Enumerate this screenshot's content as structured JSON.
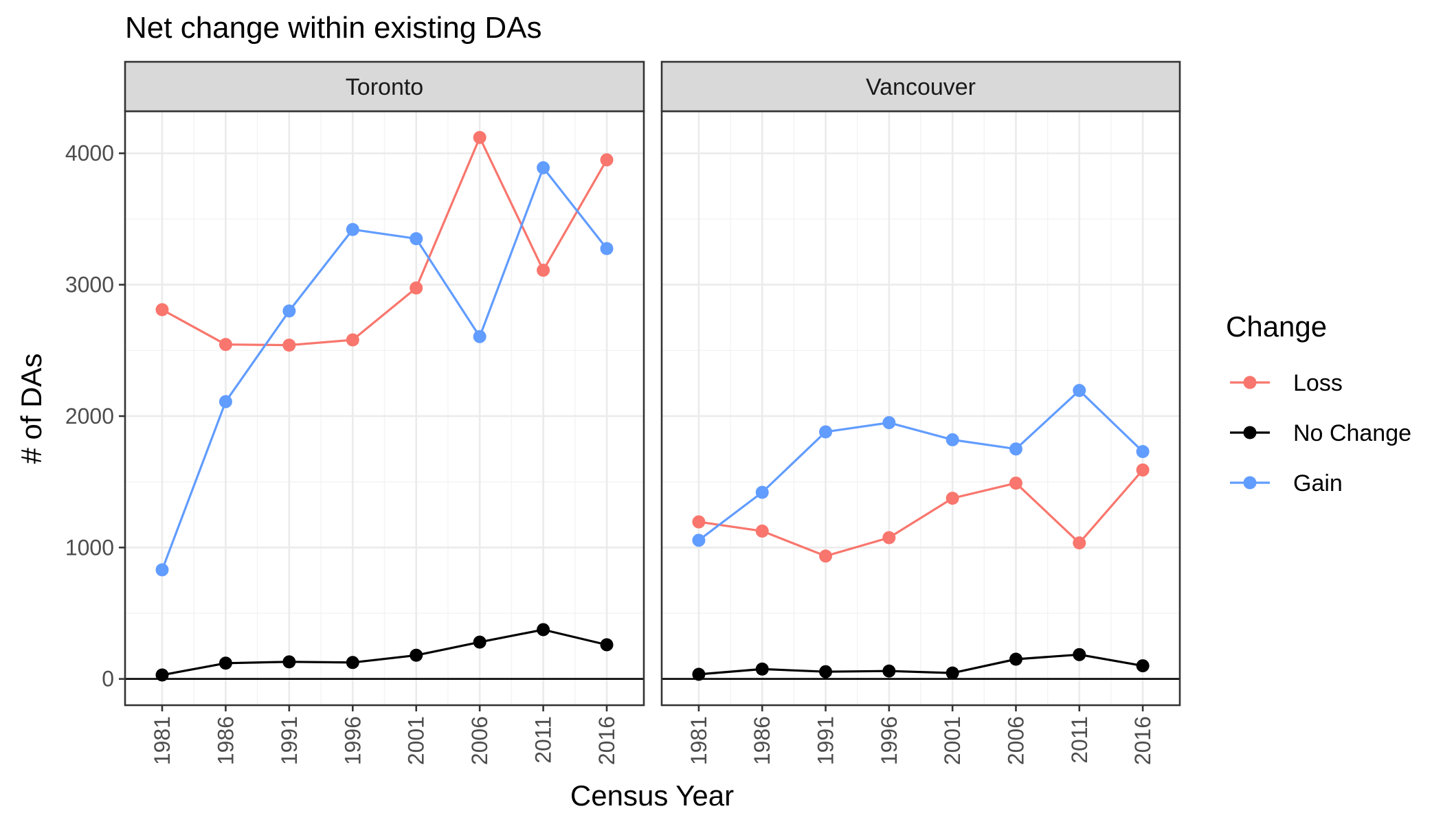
{
  "chart_data": {
    "type": "line",
    "title": "Net change within existing DAs",
    "xlabel": "Census Year",
    "ylabel": "# of DAs",
    "x": [
      "1981",
      "1986",
      "1991",
      "1996",
      "2001",
      "2006",
      "2011",
      "2016"
    ],
    "yticks": [
      0,
      1000,
      2000,
      3000,
      4000
    ],
    "ylim": [
      -200,
      4320
    ],
    "grid": true,
    "legend": {
      "title": "Change",
      "position": "right"
    },
    "series_styles": [
      {
        "name": "Loss",
        "color": "#F8766D"
      },
      {
        "name": "No Change",
        "color": "#000000"
      },
      {
        "name": "Gain",
        "color": "#619CFF"
      }
    ],
    "panels": [
      {
        "label": "Toronto",
        "series": [
          {
            "name": "Loss",
            "values": [
              2810,
              2545,
              2540,
              2580,
              2975,
              4120,
              3110,
              3950
            ]
          },
          {
            "name": "No Change",
            "values": [
              30,
              120,
              130,
              125,
              180,
              280,
              375,
              260
            ]
          },
          {
            "name": "Gain",
            "values": [
              830,
              2110,
              2800,
              3420,
              3350,
              2605,
              3890,
              3275
            ]
          }
        ]
      },
      {
        "label": "Vancouver",
        "series": [
          {
            "name": "Loss",
            "values": [
              1195,
              1125,
              935,
              1075,
              1375,
              1490,
              1035,
              1590
            ]
          },
          {
            "name": "No Change",
            "values": [
              35,
              75,
              55,
              60,
              45,
              150,
              185,
              100
            ]
          },
          {
            "name": "Gain",
            "values": [
              1055,
              1420,
              1880,
              1950,
              1820,
              1750,
              2195,
              1730
            ]
          }
        ]
      }
    ]
  }
}
